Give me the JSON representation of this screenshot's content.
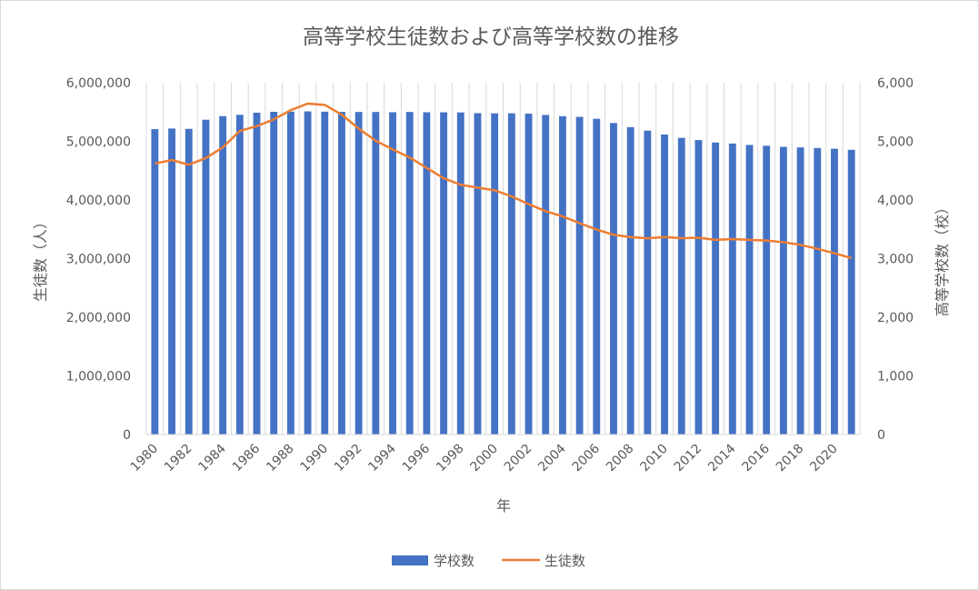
{
  "chart_data": {
    "type": "bar",
    "title": "高等学校生徒数および高等学校数の推移",
    "xlabel": "年",
    "ylabel": "生徒数（人）",
    "y2label": "高等学校数（校）",
    "ylim": [
      0,
      6000000
    ],
    "y2lim": [
      0,
      6000
    ],
    "yticks": [
      "0",
      "1,000,000",
      "2,000,000",
      "3,000,000",
      "4,000,000",
      "5,000,000",
      "6,000,000"
    ],
    "y2ticks": [
      "0",
      "1,000",
      "2,000",
      "3,000",
      "4,000",
      "5,000",
      "6,000"
    ],
    "grid": "vertical",
    "legend_position": "bottom",
    "categories": [
      "1980",
      "1981",
      "1982",
      "1983",
      "1984",
      "1985",
      "1986",
      "1987",
      "1988",
      "1989",
      "1990",
      "1991",
      "1992",
      "1993",
      "1994",
      "1995",
      "1996",
      "1997",
      "1998",
      "1999",
      "2000",
      "2001",
      "2002",
      "2003",
      "2004",
      "2005",
      "2006",
      "2007",
      "2008",
      "2009",
      "2010",
      "2011",
      "2012",
      "2013",
      "2014",
      "2015",
      "2016",
      "2017",
      "2018",
      "2019",
      "2020",
      "2021"
    ],
    "xtick_labels": [
      "1980",
      "1982",
      "1984",
      "1986",
      "1988",
      "1990",
      "1992",
      "1994",
      "1996",
      "1998",
      "2000",
      "2002",
      "2004",
      "2006",
      "2008",
      "2010",
      "2012",
      "2014",
      "2016",
      "2018",
      "2020"
    ],
    "series": [
      {
        "name": "学校数",
        "type": "bar",
        "axis": "right",
        "color": "#4472c4",
        "values": [
          5208,
          5219,
          5213,
          5369,
          5430,
          5453,
          5489,
          5504,
          5507,
          5511,
          5506,
          5503,
          5501,
          5501,
          5497,
          5501,
          5496,
          5496,
          5493,
          5481,
          5478,
          5479,
          5472,
          5450,
          5429,
          5418,
          5385,
          5313,
          5243,
          5183,
          5116,
          5060,
          5022,
          4981,
          4963,
          4939,
          4925,
          4907,
          4897,
          4887,
          4874,
          4856
        ]
      },
      {
        "name": "生徒数",
        "type": "line",
        "axis": "left",
        "color": "#ed7d31",
        "values": [
          4621000,
          4682000,
          4601000,
          4716000,
          4897000,
          5178000,
          5260000,
          5375000,
          5533000,
          5644000,
          5623000,
          5455000,
          5218000,
          5010000,
          4862000,
          4725000,
          4547000,
          4371000,
          4259000,
          4212000,
          4165000,
          4062000,
          3929000,
          3809000,
          3720000,
          3605000,
          3497000,
          3406000,
          3368000,
          3347000,
          3369000,
          3349000,
          3356000,
          3320000,
          3334000,
          3319000,
          3309000,
          3280000,
          3236000,
          3168000,
          3092000,
          3008000
        ]
      }
    ]
  }
}
